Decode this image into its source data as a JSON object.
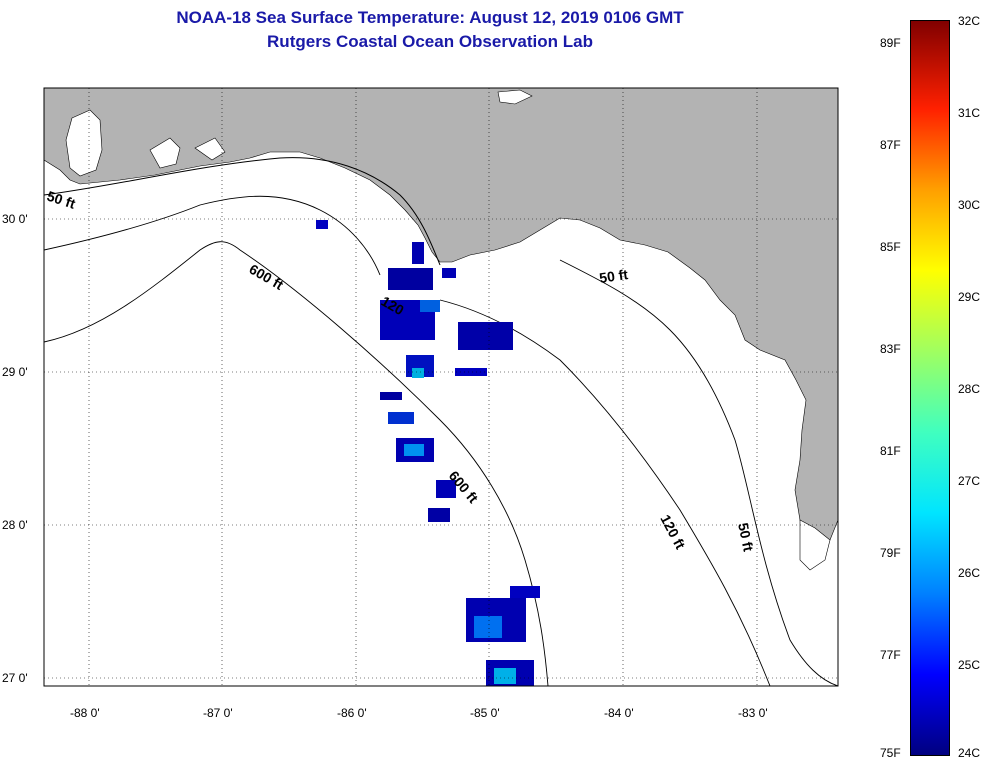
{
  "title": "NOAA-18 Sea Surface Temperature:  August 12, 2019 0106 GMT",
  "subtitle": "Rutgers Coastal Ocean Observation Lab",
  "lat_labels": [
    "30 0'",
    "29 0'",
    "28 0'",
    "27 0'"
  ],
  "lon_labels": [
    "-88 0'",
    "-87 0'",
    "-86 0'",
    "-85 0'",
    "-84 0'",
    "-83 0'"
  ],
  "contours": {
    "c50_west": "50 ft",
    "c600_north": "600 ft",
    "c120_center": "120",
    "c50_east": "50 ft",
    "c600_south": "600 ft",
    "c120_south": "120 ft",
    "c50_south": "50 ft"
  },
  "colorbar": {
    "fahrenheit": [
      "89F",
      "87F",
      "85F",
      "83F",
      "81F",
      "79F",
      "77F",
      "75F"
    ],
    "celsius": [
      "32C",
      "31C",
      "30C",
      "29C",
      "28C",
      "27C",
      "26C",
      "25C",
      "24C"
    ]
  },
  "colors": {
    "land": "#b3b3b3",
    "title": "#1a1aa8",
    "sst_cold": "#000080",
    "sst_warm": "#800000"
  }
}
